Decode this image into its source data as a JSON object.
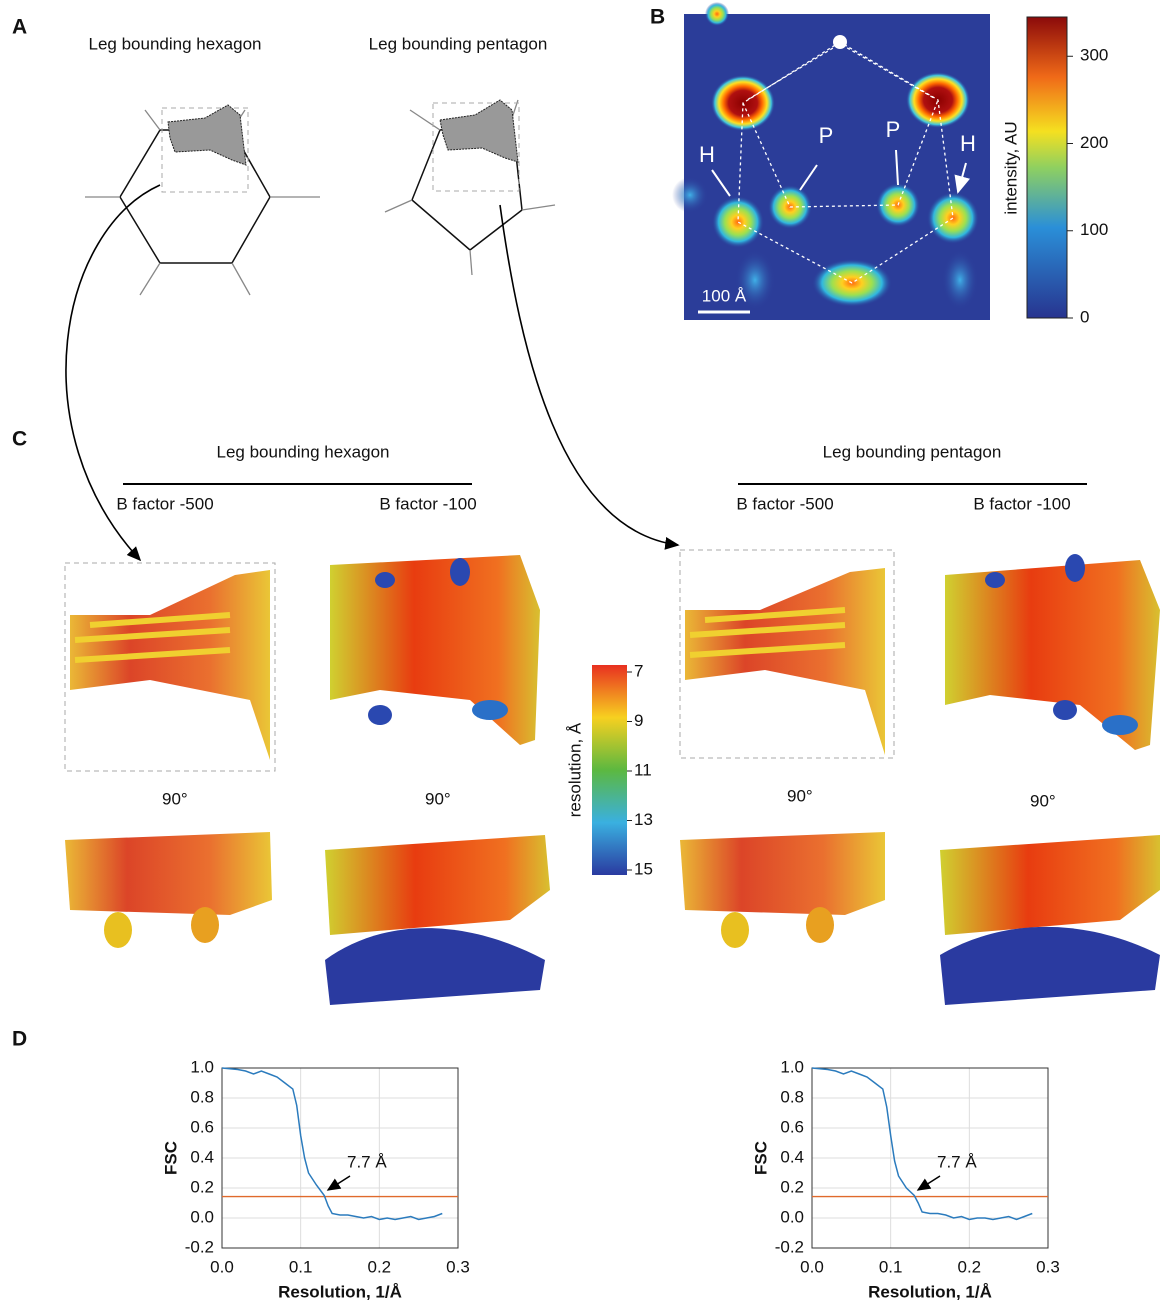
{
  "panel_labels": [
    "A",
    "B",
    "C",
    "D"
  ],
  "panel_a": {
    "titles": [
      "Leg bounding hexagon",
      "Leg bounding pentagon"
    ]
  },
  "panel_b": {
    "markers": [
      "H",
      "P",
      "P",
      "H"
    ],
    "scale_bar": "100 Å",
    "colorbar": {
      "label": "intensity, AU",
      "lim": [
        0,
        345
      ],
      "ticks": [
        0,
        100,
        200,
        300
      ]
    }
  },
  "panel_c": {
    "groups": [
      {
        "title": "Leg bounding hexagon",
        "columns": [
          "B factor -500",
          "B factor -100"
        ]
      },
      {
        "title": "Leg bounding pentagon",
        "columns": [
          "B factor -500",
          "B factor -100"
        ]
      }
    ],
    "rotation_labels": [
      "90°",
      "90°",
      "90°",
      "90°"
    ],
    "colorbar": {
      "label": "resolution, Å",
      "lim": [
        7,
        15
      ],
      "ticks": [
        7,
        9,
        11,
        13,
        15
      ]
    }
  },
  "chart_data": [
    {
      "type": "line",
      "x_label": "Resolution, 1/Å",
      "y_label": "FSC",
      "annotation": "7.7 Å",
      "xlim": [
        0,
        0.3
      ],
      "ylim": [
        -0.2,
        1.0
      ],
      "xticks": [
        {
          "value": 0,
          "label": "0.0"
        },
        0.1,
        0.2,
        0.3
      ],
      "yticks": [
        {
          "value": 1.0,
          "label": "1.0"
        },
        0.8,
        0.6,
        0.4,
        0.2,
        {
          "value": 0,
          "label": "0.0"
        },
        -0.2
      ],
      "grid": true,
      "thresholds": [
        {
          "value": 0.143,
          "color": "#e06a2c"
        }
      ],
      "series": [
        {
          "color": "#2b7bbd",
          "x": [
            0,
            0.02,
            0.03,
            0.04,
            0.05,
            0.06,
            0.07,
            0.08,
            0.09,
            0.095,
            0.1,
            0.105,
            0.11,
            0.12,
            0.13,
            0.135,
            0.14,
            0.15,
            0.16,
            0.17,
            0.18,
            0.19,
            0.2,
            0.21,
            0.22,
            0.23,
            0.24,
            0.25,
            0.26,
            0.27,
            0.28
          ],
          "values": [
            1.0,
            0.99,
            0.98,
            0.96,
            0.98,
            0.96,
            0.94,
            0.9,
            0.86,
            0.75,
            0.55,
            0.4,
            0.3,
            0.22,
            0.15,
            0.08,
            0.03,
            0.02,
            0.02,
            0.01,
            0.0,
            0.01,
            -0.01,
            0.0,
            -0.01,
            0.0,
            0.01,
            -0.01,
            0.0,
            0.01,
            0.03
          ]
        }
      ]
    },
    {
      "type": "line",
      "x_label": "Resolution, 1/Å",
      "y_label": "FSC",
      "annotation": "7.7 Å",
      "xlim": [
        0,
        0.3
      ],
      "ylim": [
        -0.2,
        1.0
      ],
      "xticks": [
        {
          "value": 0,
          "label": "0.0"
        },
        0.1,
        0.2,
        0.3
      ],
      "yticks": [
        {
          "value": 1.0,
          "label": "1.0"
        },
        0.8,
        0.6,
        0.4,
        0.2,
        {
          "value": 0,
          "label": "0.0"
        },
        -0.2
      ],
      "grid": true,
      "thresholds": [
        {
          "value": 0.143,
          "color": "#e06a2c"
        }
      ],
      "series": [
        {
          "color": "#2b7bbd",
          "x": [
            0,
            0.02,
            0.03,
            0.04,
            0.05,
            0.06,
            0.07,
            0.08,
            0.09,
            0.095,
            0.1,
            0.105,
            0.11,
            0.12,
            0.13,
            0.135,
            0.14,
            0.15,
            0.16,
            0.17,
            0.18,
            0.19,
            0.2,
            0.21,
            0.22,
            0.23,
            0.24,
            0.25,
            0.26,
            0.27,
            0.28
          ],
          "values": [
            1.0,
            0.99,
            0.98,
            0.96,
            0.98,
            0.96,
            0.94,
            0.9,
            0.86,
            0.74,
            0.55,
            0.38,
            0.28,
            0.2,
            0.15,
            0.1,
            0.04,
            0.03,
            0.03,
            0.02,
            0.0,
            0.01,
            -0.01,
            0.0,
            0.0,
            -0.01,
            0.0,
            0.01,
            -0.01,
            0.01,
            0.03
          ]
        }
      ]
    }
  ]
}
